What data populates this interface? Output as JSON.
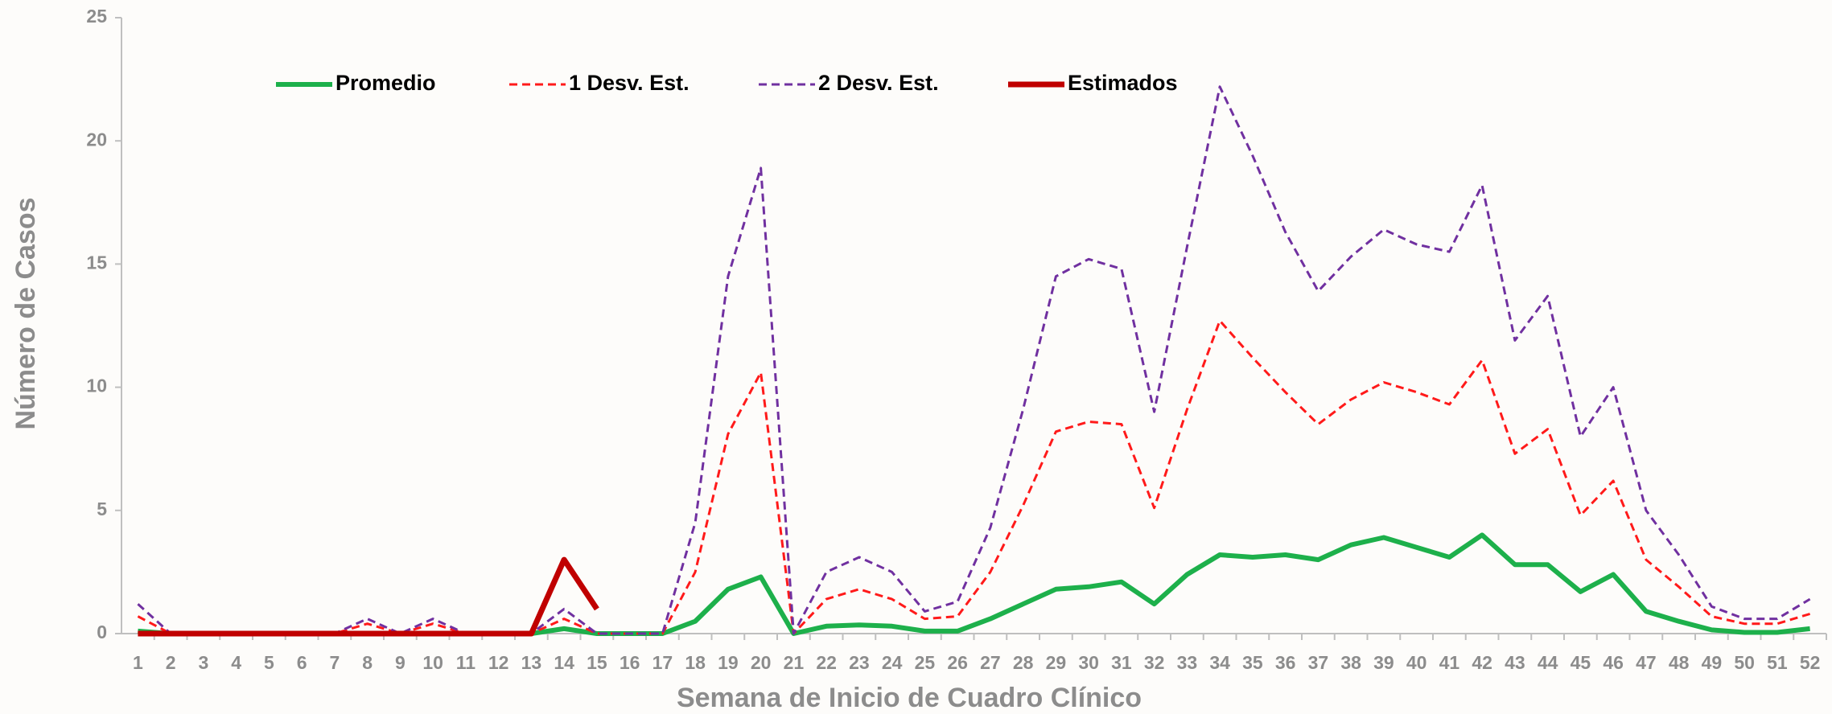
{
  "chart_data": {
    "type": "line",
    "x_label": "Semana de Inicio de Cuadro Clínico",
    "y_label": "Número de Casos",
    "categories": [
      "1",
      "2",
      "3",
      "4",
      "5",
      "6",
      "7",
      "8",
      "9",
      "10",
      "11",
      "12",
      "13",
      "14",
      "15",
      "16",
      "17",
      "18",
      "19",
      "20",
      "21",
      "22",
      "23",
      "24",
      "25",
      "26",
      "27",
      "28",
      "29",
      "30",
      "31",
      "32",
      "33",
      "34",
      "35",
      "36",
      "37",
      "38",
      "39",
      "40",
      "41",
      "42",
      "43",
      "44",
      "45",
      "46",
      "47",
      "48",
      "49",
      "50",
      "51",
      "52"
    ],
    "ylim": [
      0,
      25
    ],
    "yticks": [
      0,
      5,
      10,
      15,
      20,
      25
    ],
    "legend": "top-left",
    "series": [
      {
        "name": "Promedio",
        "color": "#1db04b",
        "dashed": false,
        "width": 6,
        "values": [
          0.1,
          0,
          0,
          0,
          0,
          0,
          0,
          0,
          0,
          0,
          0,
          0,
          0,
          0.2,
          0,
          0,
          0,
          0.5,
          1.8,
          2.3,
          0,
          0.3,
          0.35,
          0.3,
          0.1,
          0.1,
          0.6,
          1.2,
          1.8,
          1.9,
          2.1,
          1.2,
          2.4,
          3.2,
          3.1,
          3.2,
          3.0,
          3.6,
          3.9,
          3.5,
          3.1,
          4.0,
          2.8,
          2.8,
          1.7,
          2.4,
          0.9,
          0.5,
          0.15,
          0.05,
          0.05,
          0.2
        ]
      },
      {
        "name": "1 Desv. Est.",
        "color": "#ff1a1a",
        "dashed": true,
        "width": 3,
        "values": [
          0.7,
          0,
          0,
          0,
          0,
          0,
          0,
          0.4,
          0,
          0.4,
          0,
          0,
          0,
          0.6,
          0,
          0,
          0,
          2.5,
          8.1,
          10.6,
          0,
          1.4,
          1.8,
          1.4,
          0.6,
          0.7,
          2.5,
          5.2,
          8.2,
          8.6,
          8.5,
          5.1,
          9.1,
          12.7,
          11.2,
          9.8,
          8.5,
          9.5,
          10.2,
          9.8,
          9.3,
          11.1,
          7.3,
          8.3,
          4.8,
          6.2,
          3.0,
          1.9,
          0.7,
          0.4,
          0.4,
          0.8
        ]
      },
      {
        "name": "2 Desv. Est.",
        "color": "#7030a0",
        "dashed": true,
        "width": 3,
        "values": [
          1.2,
          0,
          0,
          0,
          0,
          0,
          0,
          0.6,
          0,
          0.6,
          0,
          0,
          0,
          1.0,
          0,
          0,
          0,
          4.5,
          14.5,
          18.9,
          0,
          2.5,
          3.1,
          2.5,
          0.9,
          1.3,
          4.3,
          9.1,
          14.5,
          15.2,
          14.8,
          9.0,
          15.7,
          22.2,
          19.4,
          16.3,
          13.9,
          15.3,
          16.4,
          15.8,
          15.5,
          18.2,
          11.9,
          13.7,
          8.0,
          10.0,
          5.0,
          3.2,
          1.1,
          0.6,
          0.6,
          1.4
        ]
      },
      {
        "name": "Estimados",
        "color": "#c00000",
        "dashed": false,
        "width": 7,
        "values": [
          0,
          0,
          0,
          0,
          0,
          0,
          0,
          0,
          0,
          0,
          0,
          0,
          0,
          3.0,
          1.0,
          null,
          null,
          null,
          null,
          null,
          null,
          null,
          null,
          null,
          null,
          null,
          null,
          null,
          null,
          null,
          null,
          null,
          null,
          null,
          null,
          null,
          null,
          null,
          null,
          null,
          null,
          null,
          null,
          null,
          null,
          null,
          null,
          null,
          null,
          null,
          null,
          null
        ]
      }
    ]
  }
}
